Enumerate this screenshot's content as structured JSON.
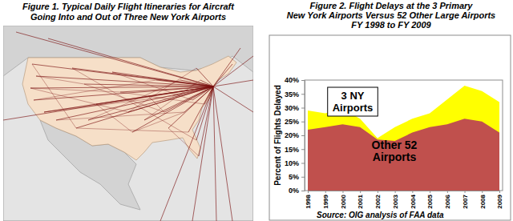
{
  "map": {
    "title": [
      "Figure 1. Typical Daily Flight Itineraries for Aircraft",
      "Going Into and Out of Three New York Airports"
    ]
  },
  "chart_data": {
    "type": "area",
    "title": [
      "Figure 2.  Flight Delays at the 3 Primary",
      "New York Airports Versus 52 Other Large Airports",
      "FY 1998 to FY 2009"
    ],
    "y_label": "Percent of Flights Delayed",
    "source": "Source:  OIG analysis of FAA data",
    "categories": [
      "1998",
      "1999",
      "2000",
      "2001",
      "2002",
      "2003",
      "2004",
      "2005",
      "2006",
      "2007",
      "2008",
      "2009"
    ],
    "series": [
      {
        "name": "3 NY Airports",
        "color": "#ffff00",
        "values": [
          29,
          28,
          29.5,
          26,
          19,
          23,
          26,
          28,
          33,
          38,
          36,
          32
        ]
      },
      {
        "name": "Other 52 Airports",
        "color": "#c0504d",
        "values": [
          22,
          23,
          24,
          23,
          18.5,
          18,
          21,
          23,
          24,
          26,
          25,
          21
        ]
      }
    ],
    "ylim": [
      0,
      40
    ],
    "yticks": [
      {
        "value": 0,
        "label": "0%"
      },
      {
        "value": 5,
        "label": "5%"
      },
      {
        "value": 10,
        "label": "10%"
      },
      {
        "value": 15,
        "label": "15%"
      },
      {
        "value": 20,
        "label": "20%"
      },
      {
        "value": 25,
        "label": "25%"
      },
      {
        "value": 30,
        "label": "30%"
      },
      {
        "value": 35,
        "label": "35%"
      },
      {
        "value": 40,
        "label": "40%"
      }
    ],
    "stacked": false,
    "grid": false
  }
}
